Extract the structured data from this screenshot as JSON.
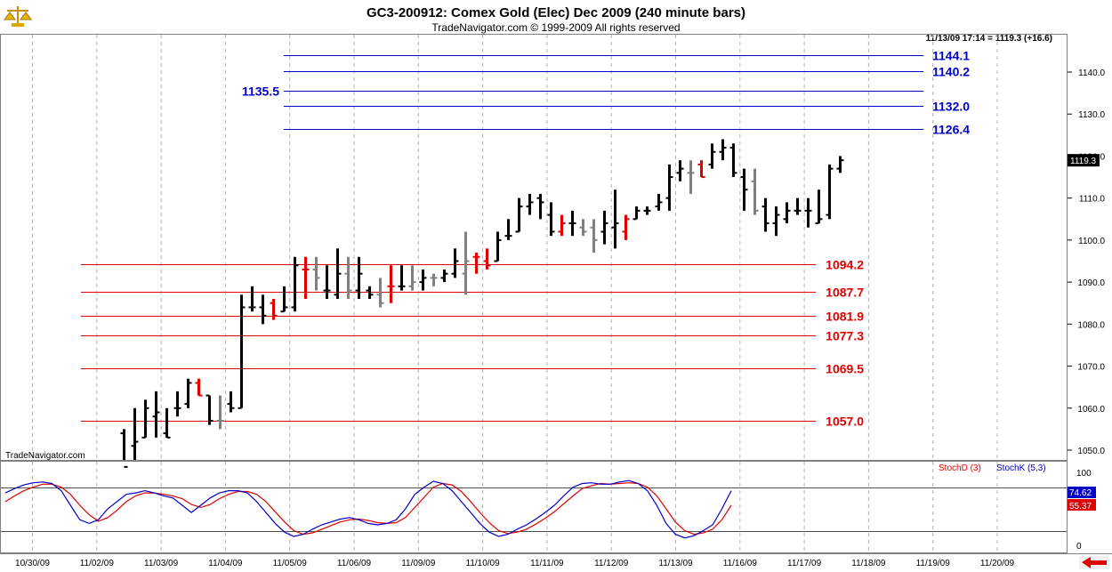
{
  "chart_data": {
    "type": "bar",
    "title": "GC3-200912:  Comex Gold (Elec) Dec 2009  (240 minute bars)",
    "subtitle": "TradeNavigator.com © 1999-2009 All rights reserved",
    "last_quote": "11/13/09 17:14 = 1119.3 (+16.6)",
    "watermark": "TradeNavigator.com",
    "current_price_label": "1119.3",
    "colors": {
      "up": "#000000",
      "red": "#e00000",
      "gray": "#808080",
      "blue_level": "#0000c8",
      "red_level": "#e00000"
    },
    "price_axis": {
      "ylim": [
        1046,
        1152
      ],
      "ticks": [
        "1050.0",
        "1060.0",
        "1070.0",
        "1080.0",
        "1090.0",
        "1100.0",
        "1110.0",
        "1120.0",
        "1130.0",
        "1140.0"
      ]
    },
    "dates": [
      "10/30/09",
      "11/02/09",
      "11/03/09",
      "11/04/09",
      "11/05/09",
      "11/06/09",
      "11/09/09",
      "11/10/09",
      "11/11/09",
      "11/12/09",
      "11/13/09",
      "11/16/09",
      "11/17/09",
      "11/18/09",
      "11/19/09",
      "11/20/09"
    ],
    "blue_levels": [
      {
        "value": 1144.1,
        "label": "1144.1"
      },
      {
        "value": 1140.2,
        "label": "1140.2"
      },
      {
        "value": 1135.5,
        "label": "1135.5"
      },
      {
        "value": 1132.0,
        "label": "1132.0"
      },
      {
        "value": 1126.4,
        "label": "1126.4"
      }
    ],
    "red_levels": [
      {
        "value": 1094.2,
        "label": "1094.2"
      },
      {
        "value": 1087.7,
        "label": "1087.7"
      },
      {
        "value": 1081.9,
        "label": "1081.9"
      },
      {
        "value": 1077.3,
        "label": "1077.3"
      },
      {
        "value": 1069.5,
        "label": "1069.5"
      },
      {
        "value": 1057.0,
        "label": "1057.0"
      }
    ],
    "ohlc_columns": [
      "slot",
      "open",
      "high",
      "low",
      "close",
      "color"
    ],
    "bars": [
      [
        0,
        1054,
        1055,
        1044,
        1046,
        "black"
      ],
      [
        1,
        1051,
        1060,
        1046,
        1052,
        "black"
      ],
      [
        2,
        1053,
        1062,
        1053,
        1060,
        "black"
      ],
      [
        3,
        1058,
        1064,
        1053,
        1059,
        "black"
      ],
      [
        4,
        1054,
        1060,
        1053,
        1053,
        "black"
      ],
      [
        5,
        1060,
        1064,
        1058,
        1060,
        "black"
      ],
      [
        6,
        1061,
        1067,
        1060,
        1066,
        "black"
      ],
      [
        7,
        1066,
        1067,
        1063,
        1063,
        "red"
      ],
      [
        8,
        1063,
        1063,
        1056,
        1057,
        "black"
      ],
      [
        9,
        1057,
        1063,
        1055,
        1057,
        "gray"
      ],
      [
        10,
        1061,
        1064,
        1059,
        1060,
        "black"
      ],
      [
        11,
        1060,
        1087,
        1060,
        1084,
        "black"
      ],
      [
        12,
        1084,
        1089,
        1083,
        1084,
        "black"
      ],
      [
        13,
        1084,
        1087,
        1080,
        1082,
        "black"
      ],
      [
        14,
        1085,
        1086,
        1081,
        1082,
        "red"
      ],
      [
        15,
        1083,
        1089,
        1083,
        1084,
        "black"
      ],
      [
        16,
        1084,
        1096,
        1083,
        1094,
        "black"
      ],
      [
        17,
        1093,
        1096,
        1086,
        1093,
        "red"
      ],
      [
        18,
        1093,
        1096,
        1088,
        1091,
        "gray"
      ],
      [
        19,
        1088,
        1094,
        1086,
        1088,
        "black"
      ],
      [
        20,
        1087,
        1098,
        1086,
        1092,
        "black"
      ],
      [
        21,
        1092,
        1096,
        1086,
        1088,
        "gray"
      ],
      [
        22,
        1088,
        1096,
        1086,
        1092,
        "black"
      ],
      [
        23,
        1088,
        1089,
        1086,
        1087,
        "black"
      ],
      [
        24,
        1087,
        1091,
        1084,
        1085,
        "gray"
      ],
      [
        25,
        1089,
        1094,
        1085,
        1089,
        "red"
      ],
      [
        26,
        1089,
        1094,
        1088,
        1089,
        "black"
      ],
      [
        27,
        1089,
        1094,
        1088,
        1090,
        "gray"
      ],
      [
        28,
        1090,
        1093,
        1088,
        1091,
        "black"
      ],
      [
        29,
        1091,
        1092,
        1089,
        1091,
        "gray"
      ],
      [
        30,
        1091,
        1093,
        1090,
        1092,
        "black"
      ],
      [
        31,
        1092,
        1098,
        1091,
        1095,
        "black"
      ],
      [
        32,
        1092,
        1102,
        1087,
        1095,
        "gray"
      ],
      [
        33,
        1096,
        1097,
        1092,
        1096,
        "red"
      ],
      [
        34,
        1095,
        1098,
        1093,
        1094,
        "red"
      ],
      [
        35,
        1095,
        1102,
        1095,
        1100,
        "black"
      ],
      [
        36,
        1101,
        1105,
        1100,
        1101,
        "black"
      ],
      [
        37,
        1102,
        1110,
        1102,
        1108,
        "black"
      ],
      [
        38,
        1108,
        1111,
        1106,
        1109,
        "black"
      ],
      [
        39,
        1110,
        1111,
        1105,
        1109,
        "black"
      ],
      [
        40,
        1106,
        1109,
        1101,
        1102,
        "black"
      ],
      [
        41,
        1102,
        1106,
        1101,
        1104,
        "red"
      ],
      [
        42,
        1104,
        1107,
        1101,
        1104,
        "black"
      ],
      [
        43,
        1103,
        1105,
        1101,
        1102,
        "gray"
      ],
      [
        44,
        1103,
        1105,
        1097,
        1100,
        "gray"
      ],
      [
        45,
        1102,
        1107,
        1099,
        1104,
        "black"
      ],
      [
        46,
        1103,
        1112,
        1098,
        1104,
        "black"
      ],
      [
        47,
        1102,
        1106,
        1100,
        1105,
        "red"
      ],
      [
        48,
        1105,
        1108,
        1105,
        1107,
        "black"
      ],
      [
        49,
        1107,
        1108,
        1106,
        1107,
        "black"
      ],
      [
        50,
        1108,
        1111,
        1107,
        1109,
        "black"
      ],
      [
        51,
        1110,
        1118,
        1107,
        1115,
        "black"
      ],
      [
        52,
        1116,
        1119,
        1114,
        1117,
        "black"
      ],
      [
        53,
        1116,
        1119,
        1111,
        1116,
        "gray"
      ],
      [
        54,
        1118,
        1119,
        1115,
        1115,
        "red"
      ],
      [
        55,
        1118,
        1123,
        1117,
        1121,
        "black"
      ],
      [
        56,
        1121,
        1124,
        1119,
        1122,
        "black"
      ],
      [
        57,
        1122,
        1123,
        1115,
        1116,
        "black"
      ],
      [
        58,
        1115,
        1117,
        1107,
        1112,
        "black"
      ],
      [
        59,
        1114,
        1117,
        1106,
        1107,
        "gray"
      ],
      [
        60,
        1108,
        1110,
        1102,
        1104,
        "black"
      ],
      [
        61,
        1104,
        1108,
        1101,
        1106,
        "black"
      ],
      [
        62,
        1105,
        1109,
        1104,
        1107,
        "black"
      ],
      [
        63,
        1107,
        1110,
        1106,
        1107,
        "black"
      ],
      [
        64,
        1107,
        1110,
        1103,
        1107,
        "black"
      ],
      [
        65,
        1104,
        1112,
        1104,
        1105,
        "black"
      ],
      [
        66,
        1106,
        1118,
        1105,
        1117,
        "black"
      ],
      [
        67,
        1117,
        1120,
        1116,
        1119,
        "black"
      ]
    ],
    "stochastic": {
      "legend": [
        {
          "name": "StochD (3)",
          "color": "#e00000"
        },
        {
          "name": "StochK (5,3)",
          "color": "#0000c8"
        }
      ],
      "ylim": [
        -10,
        115
      ],
      "ticks": [
        "0",
        "100"
      ],
      "levels": [
        80,
        20
      ],
      "K_value_label": "74.62",
      "D_value_label": "55.37",
      "K": [
        72,
        78,
        83,
        86,
        87,
        85,
        75,
        55,
        35,
        30,
        35,
        50,
        60,
        70,
        72,
        75,
        72,
        68,
        65,
        55,
        45,
        55,
        65,
        72,
        75,
        75,
        72,
        60,
        45,
        30,
        18,
        12,
        15,
        22,
        28,
        32,
        36,
        38,
        35,
        30,
        28,
        30,
        35,
        50,
        70,
        80,
        88,
        85,
        75,
        60,
        45,
        30,
        18,
        12,
        15,
        22,
        28,
        36,
        45,
        55,
        68,
        80,
        85,
        86,
        84,
        84,
        87,
        89,
        85,
        75,
        55,
        30,
        15,
        10,
        13,
        20,
        28,
        50,
        75
      ],
      "D": [
        60,
        68,
        75,
        80,
        84,
        84,
        80,
        70,
        55,
        42,
        33,
        38,
        48,
        60,
        68,
        72,
        72,
        70,
        68,
        64,
        56,
        52,
        56,
        64,
        70,
        74,
        74,
        70,
        60,
        46,
        32,
        20,
        15,
        17,
        22,
        27,
        32,
        35,
        36,
        34,
        31,
        30,
        31,
        38,
        52,
        66,
        80,
        85,
        83,
        74,
        60,
        45,
        31,
        20,
        16,
        18,
        22,
        29,
        37,
        46,
        57,
        68,
        78,
        82,
        85,
        84,
        85,
        86,
        85,
        80,
        68,
        50,
        32,
        20,
        15,
        17,
        22,
        35,
        55
      ]
    }
  },
  "ui": {
    "back_arrow_icon": "left-arrow-icon",
    "logo_icon": "scales-icon"
  }
}
